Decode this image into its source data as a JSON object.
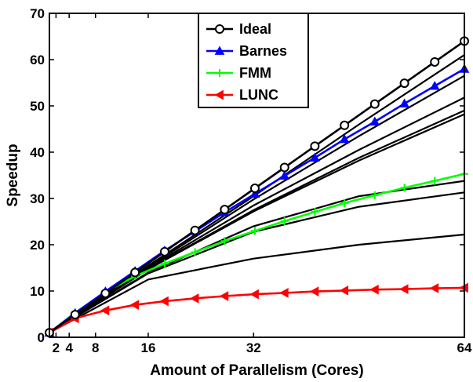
{
  "chart_data": {
    "type": "line",
    "xlabel": "Amount of Parallelism (Cores)",
    "ylabel": "Speedup",
    "xlim": [
      1,
      64
    ],
    "ylim": [
      0,
      70
    ],
    "xticks": [
      2,
      4,
      8,
      16,
      32,
      64
    ],
    "yticks": [
      0,
      10,
      20,
      30,
      40,
      50,
      60,
      70
    ],
    "grid": false,
    "legend_position": "top-center",
    "legend": [
      "Ideal",
      "Barnes",
      "FMM",
      "LUNC"
    ],
    "series": [
      {
        "name": "Ideal",
        "color": "#000000",
        "marker": "circle",
        "x": [
          1,
          4.9,
          9.5,
          14,
          18.5,
          23.1,
          27.6,
          32.2,
          36.7,
          41.3,
          45.8,
          50.4,
          54.9,
          59.5,
          64
        ],
        "y": [
          1,
          4.9,
          9.5,
          14,
          18.5,
          23.1,
          27.6,
          32.2,
          36.7,
          41.3,
          45.8,
          50.4,
          54.9,
          59.5,
          64
        ]
      },
      {
        "name": "Barnes",
        "color": "#0000ff",
        "marker": "triangle-up",
        "x": [
          1,
          4.9,
          9.5,
          14,
          18.5,
          23.1,
          27.6,
          32.2,
          36.7,
          41.3,
          45.8,
          50.4,
          54.9,
          59.5,
          64
        ],
        "y": [
          1,
          5.2,
          9.9,
          14.3,
          18.7,
          22.9,
          27,
          31,
          34.9,
          38.8,
          42.8,
          46.6,
          50.5,
          54.3,
          58
        ]
      },
      {
        "name": "FMM",
        "color": "#00ff00",
        "marker": "plus",
        "x": [
          1,
          4.9,
          9.5,
          14,
          18.5,
          23.1,
          27.6,
          32.2,
          36.7,
          41.3,
          45.8,
          50.4,
          54.9,
          59.5,
          64
        ],
        "y": [
          1,
          5.3,
          9.8,
          13.2,
          15.9,
          18.4,
          20.8,
          23,
          25.1,
          27.1,
          29,
          30.7,
          32.3,
          33.8,
          35.3
        ]
      },
      {
        "name": "LUNC",
        "color": "#ff0000",
        "marker": "triangle-left",
        "x": [
          1,
          4.9,
          9.5,
          14,
          18.5,
          23.1,
          27.6,
          32.2,
          36.7,
          41.3,
          45.8,
          50.4,
          54.9,
          59.5,
          64
        ],
        "y": [
          1,
          4.1,
          5.8,
          7,
          7.8,
          8.4,
          8.9,
          9.3,
          9.6,
          9.9,
          10.1,
          10.3,
          10.4,
          10.6,
          10.7
        ]
      }
    ],
    "unlabeled_series": [
      {
        "x": [
          1,
          16,
          32,
          48,
          64
        ],
        "y": [
          1,
          15.5,
          30.5,
          46,
          61
        ]
      },
      {
        "x": [
          1,
          16,
          32,
          48,
          64
        ],
        "y": [
          1,
          15.2,
          29.8,
          43.5,
          56.5
        ]
      },
      {
        "x": [
          1,
          16,
          32,
          48,
          64
        ],
        "y": [
          1,
          15,
          28.5,
          40.5,
          51.8
        ]
      },
      {
        "x": [
          1,
          16,
          32,
          48,
          64
        ],
        "y": [
          1,
          14.8,
          27.5,
          38.8,
          49
        ]
      },
      {
        "x": [
          1,
          16,
          32,
          48,
          64
        ],
        "y": [
          1,
          14.7,
          27.2,
          38.2,
          48.2
        ]
      },
      {
        "x": [
          1,
          16,
          32,
          48,
          64
        ],
        "y": [
          1,
          14,
          24,
          30.5,
          33.8
        ]
      },
      {
        "x": [
          1,
          16,
          32,
          48,
          64
        ],
        "y": [
          1,
          13.8,
          22.8,
          28.2,
          31.3
        ]
      },
      {
        "x": [
          1,
          16,
          32,
          48,
          64
        ],
        "y": [
          1,
          12.5,
          17,
          20,
          22.2
        ]
      }
    ]
  }
}
